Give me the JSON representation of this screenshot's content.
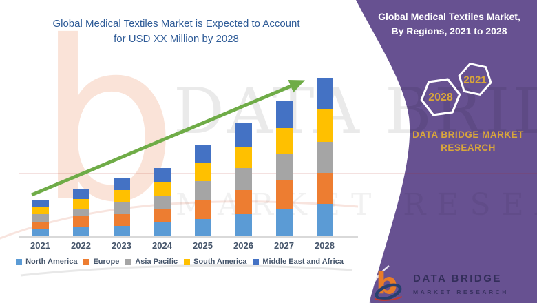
{
  "colors": {
    "panel_purple": "#675191",
    "title_blue": "#2e5b97",
    "arrow_green": "#6fac47",
    "brand_gold": "#d9a63a",
    "axis_gray": "#d9d9d9",
    "label_gray_blue": "#44546a",
    "logo_orange": "#e87c28",
    "logo_navy": "#27406f"
  },
  "left": {
    "title_line1": "Global Medical Textiles Market is Expected to Account",
    "title_line2": "for USD XX Million by 2028"
  },
  "chart_data": {
    "type": "bar",
    "stacked": true,
    "title": "Global Medical Textiles Market is Expected to Account for USD XX Million by 2028",
    "categories": [
      "2021",
      "2022",
      "2023",
      "2024",
      "2025",
      "2026",
      "2027",
      "2028"
    ],
    "series": [
      {
        "name": "North America",
        "color": "#5B9BD5",
        "values": [
          10,
          14,
          15,
          20,
          25,
          32,
          40,
          47
        ]
      },
      {
        "name": "Europe",
        "color": "#ED7D31",
        "values": [
          11,
          15,
          17,
          20,
          27,
          35,
          42,
          45
        ]
      },
      {
        "name": "Asia Pacific",
        "color": "#A5A5A5",
        "values": [
          11,
          11,
          17,
          19,
          28,
          32,
          38,
          45
        ]
      },
      {
        "name": "South America",
        "color": "#FFC000",
        "values": [
          11,
          14,
          18,
          20,
          27,
          30,
          37,
          47
        ]
      },
      {
        "name": "Middle East and Africa",
        "color": "#4472C4",
        "values": [
          10,
          15,
          18,
          20,
          25,
          36,
          39,
          46
        ]
      }
    ],
    "stack_totals": [
      53,
      69,
      85,
      99,
      132,
      165,
      196,
      230
    ],
    "value_axis_labels": "none shown (market value displayed as USD XX Million); series values estimated in relative units from bar heights",
    "legend_position": "bottom",
    "gridlines": false,
    "trend_arrow": "upward green arrow from first bar to last bar"
  },
  "watermark": {
    "logo_glyph": "b",
    "big_text": "DATA BRIDGE",
    "second_text": "MARKET RESEARCH"
  },
  "panel": {
    "title_line1": "Global Medical Textiles Market,",
    "title_line2": "By Regions, 2021 to 2028",
    "hexagons": [
      {
        "label": "2028"
      },
      {
        "label": "2021"
      }
    ],
    "brand_line1": "DATA BRIDGE MARKET",
    "brand_line2": "RESEARCH",
    "logo": {
      "glyph": "b",
      "name": "DATA BRIDGE",
      "subname": "MARKET RESEARCH"
    }
  }
}
